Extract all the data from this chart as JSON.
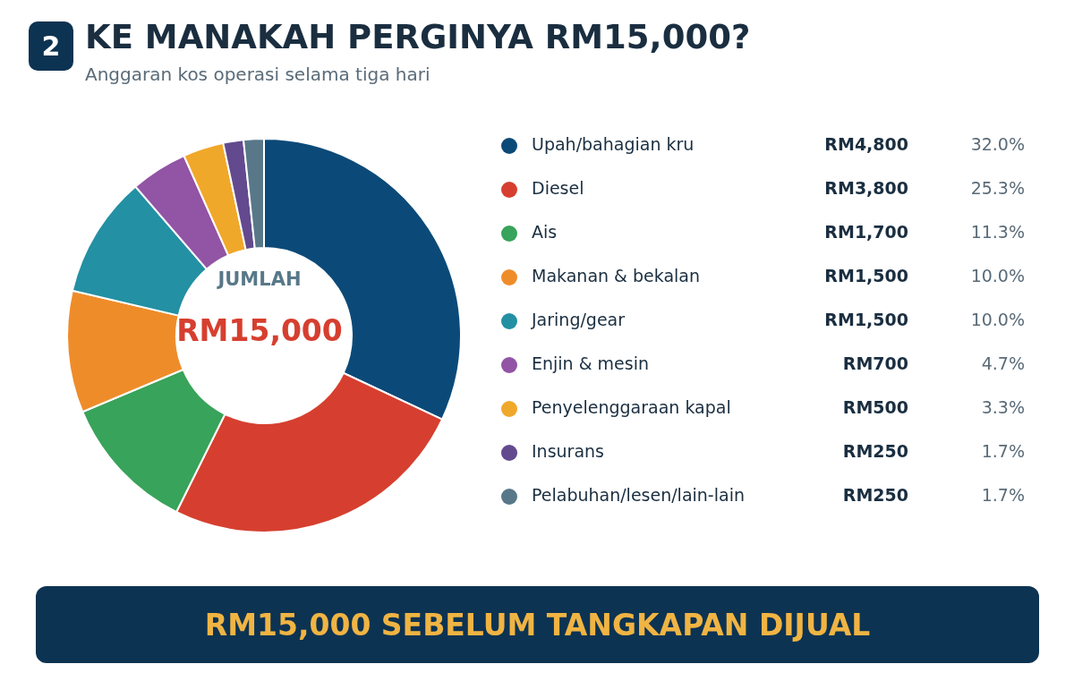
{
  "chart_data": {
    "type": "donut",
    "title": "KE MANAKAH PERGINYA RM15,000?",
    "subtitle": "Anggaran kos operasi selama tiga hari",
    "categories": [
      "Upah/bahagian kru",
      "Diesel",
      "Ais",
      "Makanan & bekalan",
      "Jaring/gear",
      "Enjin & mesin",
      "Penyelenggaraan kapal",
      "Insurans",
      "Pelabuhan/lesen/lain-lain"
    ],
    "values": [
      4800,
      3800,
      1700,
      1500,
      1500,
      700,
      500,
      250,
      250
    ],
    "colors": [
      "#0b4a78",
      "#d63f2f",
      "#38a35a",
      "#ef8c2a",
      "#2390a3",
      "#9254a5",
      "#f0a82a",
      "#634a8f",
      "#587889"
    ],
    "value_labels": [
      "RM4,800",
      "RM3,800",
      "RM1,700",
      "RM1,500",
      "RM1,500",
      "RM700",
      "RM500",
      "RM250",
      "RM250"
    ],
    "legend": "right",
    "annotations": [
      "2",
      "JUMLAH",
      "RM15,000",
      "RM15,000 SEBELUM TANGKAPAN DIJUAL",
      {
        "text": "32.0%",
        "x": "Upah/bahagian kru"
      },
      {
        "text": "25.3%",
        "x": "Diesel"
      },
      {
        "text": "11.3%",
        "x": "Ais"
      },
      {
        "text": "10.0%",
        "x": "Makanan & bekalan"
      },
      {
        "text": "10.0%",
        "x": "Jaring/gear"
      },
      {
        "text": "4.7%",
        "x": "Enjin & mesin"
      },
      {
        "text": "3.3%",
        "x": "Penyelenggaraan kapal"
      },
      {
        "text": "1.7%",
        "x": "Insurans"
      },
      {
        "text": "1.7%",
        "x": "Pelabuhan/lesen/lain-lain"
      }
    ]
  }
}
